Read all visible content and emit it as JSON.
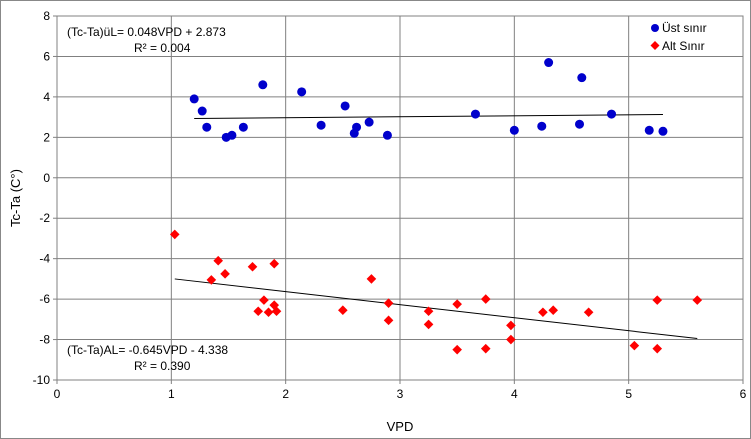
{
  "chart_data": {
    "type": "scatter",
    "xlabel": "VPD",
    "ylabel": "Tc-Ta (C°)",
    "xlim": [
      0,
      6
    ],
    "ylim": [
      -10,
      8
    ],
    "xticks": [
      "0",
      "1",
      "2",
      "3",
      "4",
      "5",
      "6"
    ],
    "yticks": [
      "-10",
      "-8",
      "-6",
      "-4",
      "-2",
      "0",
      "2",
      "4",
      "6",
      "8"
    ],
    "grid": true,
    "legend_position": "top-right",
    "series": [
      {
        "name": "Üst sınır",
        "color": "#0000cc",
        "marker": "circle",
        "points": [
          [
            1.2,
            3.9
          ],
          [
            1.27,
            3.3
          ],
          [
            1.31,
            2.5
          ],
          [
            1.48,
            2.0
          ],
          [
            1.53,
            2.1
          ],
          [
            1.63,
            2.5
          ],
          [
            1.8,
            4.6
          ],
          [
            2.14,
            4.25
          ],
          [
            2.31,
            2.6
          ],
          [
            2.52,
            3.55
          ],
          [
            2.6,
            2.2
          ],
          [
            2.62,
            2.5
          ],
          [
            2.73,
            2.75
          ],
          [
            2.89,
            2.1
          ],
          [
            3.66,
            3.15
          ],
          [
            4.0,
            2.35
          ],
          [
            4.24,
            2.55
          ],
          [
            4.3,
            5.7
          ],
          [
            4.57,
            2.65
          ],
          [
            4.59,
            4.95
          ],
          [
            4.85,
            3.15
          ],
          [
            5.18,
            2.35
          ],
          [
            5.3,
            2.3
          ]
        ]
      },
      {
        "name": "Alt Sınır",
        "color": "#ff0000",
        "marker": "diamond",
        "points": [
          [
            1.03,
            -2.8
          ],
          [
            1.35,
            -5.05
          ],
          [
            1.41,
            -4.1
          ],
          [
            1.47,
            -4.75
          ],
          [
            1.71,
            -4.4
          ],
          [
            1.76,
            -6.6
          ],
          [
            1.81,
            -6.05
          ],
          [
            1.85,
            -6.65
          ],
          [
            1.9,
            -6.3
          ],
          [
            1.9,
            -4.25
          ],
          [
            1.92,
            -6.6
          ],
          [
            2.5,
            -6.55
          ],
          [
            2.75,
            -5.0
          ],
          [
            2.9,
            -6.2
          ],
          [
            2.9,
            -7.05
          ],
          [
            3.25,
            -6.6
          ],
          [
            3.25,
            -7.25
          ],
          [
            3.5,
            -6.25
          ],
          [
            3.5,
            -8.5
          ],
          [
            3.75,
            -6.0
          ],
          [
            3.75,
            -8.45
          ],
          [
            3.97,
            -7.3
          ],
          [
            3.97,
            -8.0
          ],
          [
            4.25,
            -6.65
          ],
          [
            4.34,
            -6.55
          ],
          [
            4.65,
            -6.65
          ],
          [
            5.05,
            -8.3
          ],
          [
            5.25,
            -6.05
          ],
          [
            5.25,
            -8.45
          ],
          [
            5.6,
            -6.05
          ]
        ]
      }
    ],
    "trendlines": [
      {
        "series": "Üst sınır",
        "slope": 0.048,
        "intercept": 2.873,
        "x_range": [
          1.2,
          5.3
        ]
      },
      {
        "series": "Alt Sınır",
        "slope": -0.645,
        "intercept": -4.338,
        "x_range": [
          1.03,
          5.6
        ]
      }
    ],
    "annotations": {
      "upper_equation": "(Tc-Ta)üL=  0.048VPD + 2.873",
      "upper_r2": "R² = 0.004",
      "lower_equation": "(Tc-Ta)AL=  -0.645VPD - 4.338",
      "lower_r2": "R² = 0.390"
    }
  }
}
